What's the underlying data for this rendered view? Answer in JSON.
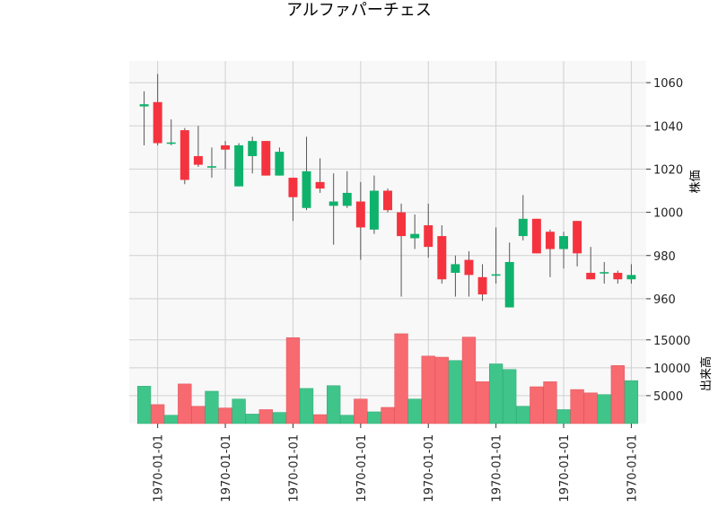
{
  "chart_data": {
    "type": "candlestick",
    "title": "アルファパーチェス",
    "colors": {
      "up": "#0fb26c",
      "down": "#f5333f",
      "up_volume": "#3fc58a",
      "down_volume": "#f76a6f",
      "wick": "#555555",
      "panel_bg": "#f8f8f8",
      "grid": "#d0d0d0"
    },
    "price_panel": {
      "ylabel": "株価",
      "ylim": [
        950,
        1070
      ],
      "yticks": [
        960,
        980,
        1000,
        1020,
        1040,
        1060
      ]
    },
    "volume_panel": {
      "ylabel": "出来高",
      "ylim": [
        0,
        18500
      ],
      "yticks": [
        5000,
        10000,
        15000
      ],
      "tick_labels": [
        "5000",
        "10000",
        "15000"
      ]
    },
    "x_tick_labels": [
      "1970-01-01",
      "1970-01-01",
      "1970-01-01",
      "1970-01-01",
      "1970-01-01",
      "1970-01-01",
      "1970-01-01",
      "1970-01-01"
    ],
    "x_tick_positions": [
      1,
      6,
      11,
      16,
      21,
      26,
      31,
      36
    ],
    "candles": [
      {
        "open": 1049,
        "high": 1056,
        "low": 1031,
        "close": 1050,
        "volume": 6700
      },
      {
        "open": 1051,
        "high": 1064,
        "low": 1031,
        "close": 1032,
        "volume": 3400
      },
      {
        "open": 1032,
        "high": 1043,
        "low": 1031,
        "close": 1032,
        "volume": 1500
      },
      {
        "open": 1038,
        "high": 1039,
        "low": 1013,
        "close": 1015,
        "volume": 7100
      },
      {
        "open": 1026,
        "high": 1040,
        "low": 1021,
        "close": 1022,
        "volume": 3100
      },
      {
        "open": 1021,
        "high": 1030,
        "low": 1016,
        "close": 1021,
        "volume": 5800
      },
      {
        "open": 1031,
        "high": 1033,
        "low": 1020,
        "close": 1029,
        "volume": 2800
      },
      {
        "open": 1012,
        "high": 1032,
        "low": 1012,
        "close": 1031,
        "volume": 4400
      },
      {
        "open": 1026,
        "high": 1035,
        "low": 1018,
        "close": 1033,
        "volume": 1700
      },
      {
        "open": 1033,
        "high": 1033,
        "low": 1017,
        "close": 1017,
        "volume": 2500
      },
      {
        "open": 1017,
        "high": 1030,
        "low": 1017,
        "close": 1028,
        "volume": 2000
      },
      {
        "open": 1016,
        "high": 1016,
        "low": 996,
        "close": 1007,
        "volume": 15400
      },
      {
        "open": 1002,
        "high": 1035,
        "low": 1001,
        "close": 1019,
        "volume": 6300
      },
      {
        "open": 1014,
        "high": 1025,
        "low": 1009,
        "close": 1011,
        "volume": 1600
      },
      {
        "open": 1003,
        "high": 1018,
        "low": 985,
        "close": 1005,
        "volume": 6800
      },
      {
        "open": 1003,
        "high": 1019,
        "low": 1002,
        "close": 1009,
        "volume": 1500
      },
      {
        "open": 1005,
        "high": 1014,
        "low": 978,
        "close": 993,
        "volume": 4400
      },
      {
        "open": 992,
        "high": 1017,
        "low": 990,
        "close": 1010,
        "volume": 2100
      },
      {
        "open": 1010,
        "high": 1011,
        "low": 1000,
        "close": 1001,
        "volume": 2900
      },
      {
        "open": 1000,
        "high": 1004,
        "low": 961,
        "close": 989,
        "volume": 16100
      },
      {
        "open": 988,
        "high": 999,
        "low": 983,
        "close": 990,
        "volume": 4400
      },
      {
        "open": 994,
        "high": 1004,
        "low": 979,
        "close": 984,
        "volume": 12100
      },
      {
        "open": 989,
        "high": 994,
        "low": 967,
        "close": 969,
        "volume": 11900
      },
      {
        "open": 972,
        "high": 980,
        "low": 961,
        "close": 976,
        "volume": 11300
      },
      {
        "open": 978,
        "high": 982,
        "low": 961,
        "close": 971,
        "volume": 15500
      },
      {
        "open": 970,
        "high": 976,
        "low": 959,
        "close": 962,
        "volume": 7500
      },
      {
        "open": 971,
        "high": 993,
        "low": 967,
        "close": 971,
        "volume": 10700
      },
      {
        "open": 956,
        "high": 986,
        "low": 956,
        "close": 977,
        "volume": 9700
      },
      {
        "open": 989,
        "high": 1008,
        "low": 987,
        "close": 997,
        "volume": 3100
      },
      {
        "open": 997,
        "high": 997,
        "low": 981,
        "close": 981,
        "volume": 6600
      },
      {
        "open": 991,
        "high": 992,
        "low": 970,
        "close": 983,
        "volume": 7500
      },
      {
        "open": 983,
        "high": 991,
        "low": 974,
        "close": 989,
        "volume": 2500
      },
      {
        "open": 996,
        "high": 996,
        "low": 975,
        "close": 981,
        "volume": 6100
      },
      {
        "open": 972,
        "high": 984,
        "low": 969,
        "close": 969,
        "volume": 5500
      },
      {
        "open": 972,
        "high": 977,
        "low": 967,
        "close": 972,
        "volume": 5200
      },
      {
        "open": 972,
        "high": 973,
        "low": 967,
        "close": 969,
        "volume": 10400
      },
      {
        "open": 969,
        "high": 976,
        "low": 967,
        "close": 971,
        "volume": 7700
      }
    ]
  }
}
